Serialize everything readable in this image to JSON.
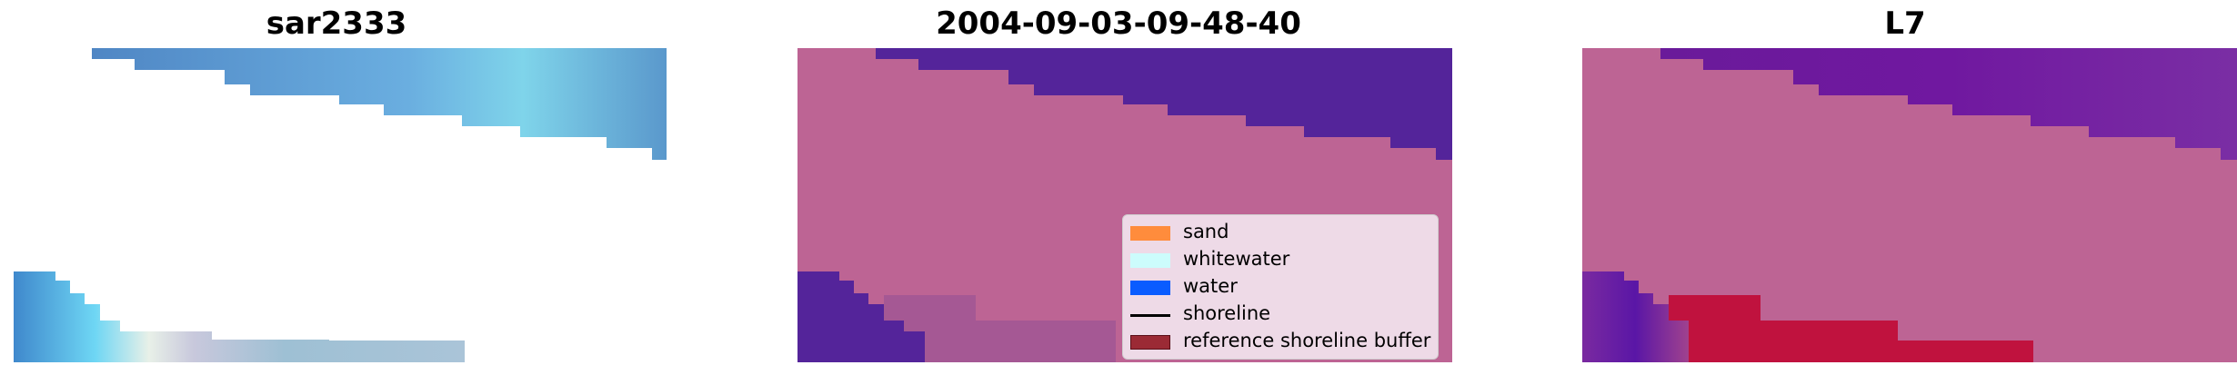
{
  "panels": [
    {
      "title": "sar2333"
    },
    {
      "title": "2004-09-03-09-48-40"
    },
    {
      "title": "L7"
    }
  ],
  "legend": {
    "items": [
      {
        "label": "sand",
        "color": "#ff8c3c",
        "kind": "patch"
      },
      {
        "label": "whitewater",
        "color": "#ccfcfc",
        "kind": "patch"
      },
      {
        "label": "water",
        "color": "#0a5cff",
        "kind": "patch"
      },
      {
        "label": "shoreline",
        "color": "#000000",
        "kind": "line"
      },
      {
        "label": "reference shoreline buffer",
        "color": "#9b2a35",
        "kind": "patch"
      }
    ]
  },
  "colors": {
    "land_pink": "#bd6494",
    "water_purple": "#54249a",
    "sar_blue": "#5b93c8",
    "sar_cyan": "#76d6ec",
    "buffer_red": "#c0123e"
  }
}
